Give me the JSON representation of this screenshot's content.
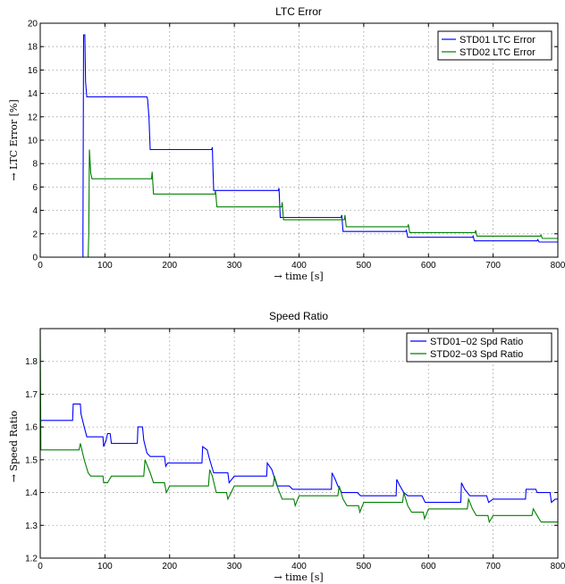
{
  "chart_data": [
    {
      "type": "line",
      "title": "LTC Error",
      "xlabel": "→ time [s]",
      "ylabel": "→ LTC Error [%]",
      "xlim": [
        0,
        800
      ],
      "ylim": [
        0,
        20
      ],
      "xticks": [
        0,
        100,
        200,
        300,
        400,
        500,
        600,
        700,
        800
      ],
      "yticks": [
        0,
        2,
        4,
        6,
        8,
        10,
        12,
        14,
        16,
        18,
        20
      ],
      "grid": true,
      "legend_position": "top-right",
      "series": [
        {
          "name": "STD01 LTC Error",
          "color": "#0000ff",
          "points": [
            [
              0,
              0
            ],
            [
              66,
              0
            ],
            [
              66,
              2
            ],
            [
              67,
              19
            ],
            [
              69,
              19
            ],
            [
              70,
              15
            ],
            [
              72,
              13.7
            ],
            [
              165,
              13.7
            ],
            [
              166,
              13.5
            ],
            [
              168,
              12
            ],
            [
              170,
              9.2
            ],
            [
              265,
              9.2
            ],
            [
              266,
              9.4
            ],
            [
              268,
              5.7
            ],
            [
              368,
              5.7
            ],
            [
              369,
              5.9
            ],
            [
              371,
              3.4
            ],
            [
              465,
              3.4
            ],
            [
              466,
              3.6
            ],
            [
              468,
              2.2
            ],
            [
              565,
              2.2
            ],
            [
              566,
              2.3
            ],
            [
              568,
              1.7
            ],
            [
              668,
              1.7
            ],
            [
              669,
              1.8
            ],
            [
              671,
              1.4
            ],
            [
              768,
              1.4
            ],
            [
              769,
              1.5
            ],
            [
              771,
              1.3
            ],
            [
              800,
              1.3
            ]
          ]
        },
        {
          "name": "STD02 LTC Error",
          "color": "#008000",
          "points": [
            [
              0,
              0
            ],
            [
              74,
              0
            ],
            [
              75,
              2
            ],
            [
              76,
              9.2
            ],
            [
              78,
              7.2
            ],
            [
              80,
              6.7
            ],
            [
              172,
              6.7
            ],
            [
              173,
              7.3
            ],
            [
              175,
              5.4
            ],
            [
              270,
              5.4
            ],
            [
              271,
              5.7
            ],
            [
              273,
              4.3
            ],
            [
              373,
              4.3
            ],
            [
              374,
              4.7
            ],
            [
              376,
              3.2
            ],
            [
              470,
              3.2
            ],
            [
              471,
              3.6
            ],
            [
              473,
              2.6
            ],
            [
              568,
              2.6
            ],
            [
              569,
              2.8
            ],
            [
              571,
              2.1
            ],
            [
              672,
              2.1
            ],
            [
              673,
              2.3
            ],
            [
              675,
              1.8
            ],
            [
              773,
              1.8
            ],
            [
              774,
              1.9
            ],
            [
              776,
              1.6
            ],
            [
              800,
              1.6
            ]
          ]
        }
      ]
    },
    {
      "type": "line",
      "title": "Speed Ratio",
      "xlabel": "→ time [s]",
      "ylabel": "→ Speed Ratio",
      "xlim": [
        0,
        800
      ],
      "ylim": [
        1.2,
        1.9
      ],
      "xticks": [
        0,
        100,
        200,
        300,
        400,
        500,
        600,
        700,
        800
      ],
      "yticks": [
        1.2,
        1.3,
        1.4,
        1.5,
        1.6,
        1.7,
        1.8
      ],
      "grid": true,
      "legend_position": "top-right",
      "series": [
        {
          "name": "STD01−02 Spd Ratio",
          "color": "#0000ff",
          "points": [
            [
              0,
              1.6
            ],
            [
              1,
              1.62
            ],
            [
              50,
              1.62
            ],
            [
              51,
              1.67
            ],
            [
              62,
              1.67
            ],
            [
              63,
              1.64
            ],
            [
              68,
              1.6
            ],
            [
              72,
              1.57
            ],
            [
              97,
              1.57
            ],
            [
              98,
              1.54
            ],
            [
              102,
              1.56
            ],
            [
              104,
              1.58
            ],
            [
              108,
              1.58
            ],
            [
              110,
              1.55
            ],
            [
              150,
              1.55
            ],
            [
              151,
              1.6
            ],
            [
              158,
              1.6
            ],
            [
              160,
              1.56
            ],
            [
              165,
              1.52
            ],
            [
              170,
              1.51
            ],
            [
              192,
              1.51
            ],
            [
              194,
              1.48
            ],
            [
              197,
              1.49
            ],
            [
              250,
              1.49
            ],
            [
              251,
              1.54
            ],
            [
              258,
              1.53
            ],
            [
              262,
              1.5
            ],
            [
              268,
              1.46
            ],
            [
              290,
              1.46
            ],
            [
              292,
              1.43
            ],
            [
              300,
              1.45
            ],
            [
              350,
              1.45
            ],
            [
              351,
              1.49
            ],
            [
              358,
              1.47
            ],
            [
              366,
              1.42
            ],
            [
              385,
              1.42
            ],
            [
              390,
              1.41
            ],
            [
              450,
              1.41
            ],
            [
              451,
              1.46
            ],
            [
              456,
              1.44
            ],
            [
              460,
              1.42
            ],
            [
              466,
              1.4
            ],
            [
              490,
              1.4
            ],
            [
              495,
              1.39
            ],
            [
              550,
              1.39
            ],
            [
              551,
              1.44
            ],
            [
              556,
              1.42
            ],
            [
              562,
              1.4
            ],
            [
              568,
              1.39
            ],
            [
              590,
              1.39
            ],
            [
              595,
              1.37
            ],
            [
              650,
              1.37
            ],
            [
              651,
              1.43
            ],
            [
              656,
              1.41
            ],
            [
              664,
              1.39
            ],
            [
              690,
              1.39
            ],
            [
              693,
              1.37
            ],
            [
              700,
              1.38
            ],
            [
              750,
              1.38
            ],
            [
              751,
              1.41
            ],
            [
              766,
              1.41
            ],
            [
              768,
              1.4
            ],
            [
              788,
              1.4
            ],
            [
              790,
              1.37
            ],
            [
              796,
              1.38
            ],
            [
              800,
              1.38
            ]
          ]
        },
        {
          "name": "STD02−03 Spd Ratio",
          "color": "#008000",
          "points": [
            [
              0,
              1.9
            ],
            [
              1,
              1.53
            ],
            [
              60,
              1.53
            ],
            [
              62,
              1.55
            ],
            [
              68,
              1.5
            ],
            [
              74,
              1.46
            ],
            [
              78,
              1.45
            ],
            [
              97,
              1.45
            ],
            [
              98,
              1.43
            ],
            [
              104,
              1.43
            ],
            [
              110,
              1.45
            ],
            [
              160,
              1.45
            ],
            [
              162,
              1.5
            ],
            [
              170,
              1.46
            ],
            [
              175,
              1.43
            ],
            [
              192,
              1.43
            ],
            [
              195,
              1.4
            ],
            [
              200,
              1.42
            ],
            [
              260,
              1.42
            ],
            [
              262,
              1.47
            ],
            [
              266,
              1.45
            ],
            [
              272,
              1.4
            ],
            [
              288,
              1.4
            ],
            [
              290,
              1.38
            ],
            [
              300,
              1.42
            ],
            [
              360,
              1.42
            ],
            [
              362,
              1.45
            ],
            [
              368,
              1.41
            ],
            [
              374,
              1.38
            ],
            [
              392,
              1.38
            ],
            [
              394,
              1.36
            ],
            [
              400,
              1.39
            ],
            [
              460,
              1.39
            ],
            [
              462,
              1.42
            ],
            [
              468,
              1.38
            ],
            [
              474,
              1.36
            ],
            [
              492,
              1.36
            ],
            [
              494,
              1.34
            ],
            [
              500,
              1.37
            ],
            [
              560,
              1.37
            ],
            [
              562,
              1.4
            ],
            [
              568,
              1.36
            ],
            [
              574,
              1.34
            ],
            [
              592,
              1.34
            ],
            [
              594,
              1.32
            ],
            [
              600,
              1.35
            ],
            [
              660,
              1.35
            ],
            [
              662,
              1.38
            ],
            [
              668,
              1.35
            ],
            [
              674,
              1.33
            ],
            [
              692,
              1.33
            ],
            [
              694,
              1.31
            ],
            [
              700,
              1.33
            ],
            [
              760,
              1.33
            ],
            [
              762,
              1.35
            ],
            [
              768,
              1.33
            ],
            [
              774,
              1.31
            ],
            [
              800,
              1.31
            ]
          ]
        }
      ]
    }
  ]
}
